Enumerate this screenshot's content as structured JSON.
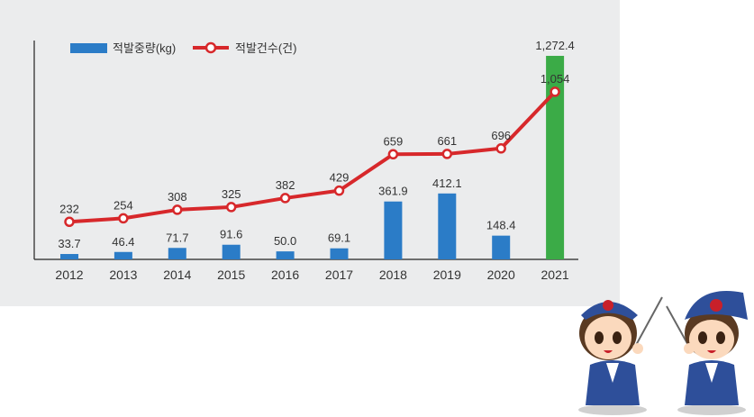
{
  "chart_data": {
    "type": "bar+line",
    "categories": [
      "2012",
      "2013",
      "2014",
      "2015",
      "2016",
      "2017",
      "2018",
      "2019",
      "2020",
      "2021"
    ],
    "series": [
      {
        "name": "적발중량(kg)",
        "type": "bar",
        "values": [
          33.7,
          46.4,
          71.7,
          91.6,
          50.0,
          69.1,
          361.9,
          412.1,
          148.4,
          1272.4
        ],
        "labels": [
          "33.7",
          "46.4",
          "71.7",
          "91.6",
          "50.0",
          "69.1",
          "361.9",
          "412.1",
          "148.4",
          "1,272.4"
        ],
        "color": "#2b7cc7",
        "highlight_color": "#3bab47"
      },
      {
        "name": "적발건수(건)",
        "type": "line",
        "values": [
          232,
          254,
          308,
          325,
          382,
          429,
          659,
          661,
          696,
          1054
        ],
        "labels": [
          "232",
          "254",
          "308",
          "325",
          "382",
          "429",
          "659",
          "661",
          "696",
          "1,054"
        ],
        "color": "#d7282b"
      }
    ],
    "legend": "top-left",
    "grid": false
  }
}
